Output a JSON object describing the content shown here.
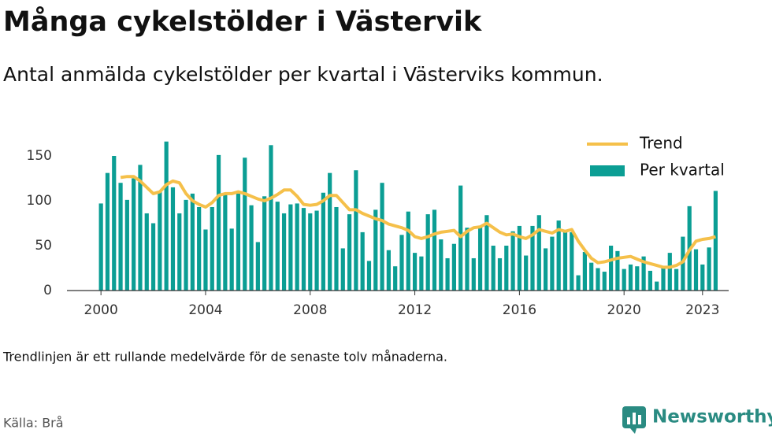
{
  "chart_data": {
    "type": "bar-line",
    "title": "Många cykelstölder i Västervik",
    "subtitle": "Antal anmälda cykelstölder per kvartal i Västerviks kommun.",
    "note": "Trendlinjen är ett rullande medelvärde för de senaste tolv månaderna.",
    "source": "Källa: Brå",
    "brand": "Newsworthy",
    "x": [
      2000,
      2000.25,
      2000.5,
      2000.75,
      2001,
      2001.25,
      2001.5,
      2001.75,
      2002,
      2002.25,
      2002.5,
      2002.75,
      2003,
      2003.25,
      2003.5,
      2003.75,
      2004,
      2004.25,
      2004.5,
      2004.75,
      2005,
      2005.25,
      2005.5,
      2005.75,
      2006,
      2006.25,
      2006.5,
      2006.75,
      2007,
      2007.25,
      2007.5,
      2007.75,
      2008,
      2008.25,
      2008.5,
      2008.75,
      2009,
      2009.25,
      2009.5,
      2009.75,
      2010,
      2010.25,
      2010.5,
      2010.75,
      2011,
      2011.25,
      2011.5,
      2011.75,
      2012,
      2012.25,
      2012.5,
      2012.75,
      2013,
      2013.25,
      2013.5,
      2013.75,
      2014,
      2014.25,
      2014.5,
      2014.75,
      2015,
      2015.25,
      2015.5,
      2015.75,
      2016,
      2016.25,
      2016.5,
      2016.75,
      2017,
      2017.25,
      2017.5,
      2017.75,
      2018,
      2018.25,
      2018.5,
      2018.75,
      2019,
      2019.25,
      2019.5,
      2019.75,
      2020,
      2020.25,
      2020.5,
      2020.75,
      2021,
      2021.25,
      2021.5,
      2021.75,
      2022,
      2022.25,
      2022.5,
      2022.75,
      2023,
      2023.25,
      2023.5
    ],
    "series": [
      {
        "name": "Per kvartal",
        "kind": "bar",
        "color": "#0b9e94",
        "values": [
          97,
          131,
          150,
          120,
          101,
          125,
          140,
          86,
          75,
          110,
          166,
          115,
          86,
          101,
          108,
          93,
          68,
          93,
          151,
          108,
          69,
          108,
          148,
          95,
          54,
          105,
          162,
          99,
          86,
          96,
          97,
          92,
          86,
          89,
          109,
          131,
          93,
          47,
          85,
          134,
          65,
          33,
          90,
          120,
          45,
          27,
          62,
          88,
          42,
          38,
          85,
          90,
          57,
          36,
          52,
          117,
          70,
          36,
          72,
          84,
          50,
          36,
          50,
          66,
          72,
          39,
          72,
          84,
          47,
          60,
          78,
          65,
          65,
          17,
          43,
          31,
          25,
          21,
          50,
          44,
          24,
          29,
          27,
          38,
          22,
          10,
          25,
          42,
          24,
          60,
          94,
          46,
          29,
          48,
          111
        ]
      },
      {
        "name": "Trend",
        "kind": "line",
        "color": "#f5c04a",
        "values": [
          null,
          null,
          null,
          126,
          127,
          127,
          122,
          115,
          108,
          110,
          118,
          122,
          120,
          108,
          100,
          96,
          93,
          98,
          106,
          108,
          108,
          110,
          108,
          105,
          102,
          100,
          103,
          107,
          112,
          112,
          105,
          96,
          95,
          96,
          100,
          106,
          106,
          98,
          90,
          90,
          86,
          83,
          80,
          78,
          74,
          72,
          70,
          67,
          60,
          58,
          60,
          63,
          65,
          66,
          67,
          60,
          66,
          70,
          71,
          75,
          70,
          65,
          62,
          63,
          60,
          58,
          62,
          68,
          66,
          64,
          68,
          66,
          68,
          55,
          45,
          36,
          31,
          32,
          34,
          36,
          37,
          38,
          35,
          32,
          30,
          28,
          26,
          26,
          28,
          32,
          45,
          55,
          57,
          58,
          60
        ]
      }
    ],
    "xlim": [
      1998.7,
      2024
    ],
    "xticks": [
      2000,
      2004,
      2008,
      2012,
      2016,
      2020,
      2023
    ],
    "ylim": [
      0,
      175
    ],
    "yticks": [
      0,
      50,
      100,
      150
    ],
    "legend": "top-right"
  }
}
